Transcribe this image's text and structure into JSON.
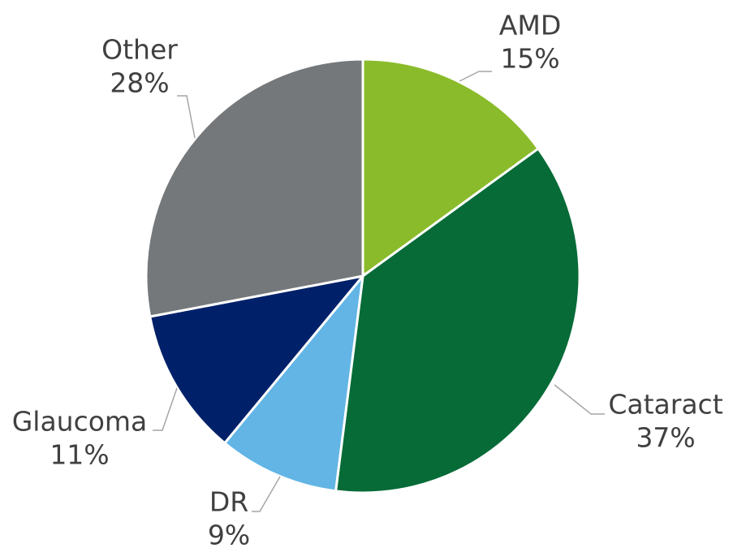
{
  "chart_data": {
    "type": "pie",
    "categories": [
      "AMD",
      "Cataract",
      "DR",
      "Glaucoma",
      "Other"
    ],
    "values": [
      15,
      37,
      9,
      11,
      28
    ],
    "value_labels": [
      "15%",
      "37%",
      "9%",
      "11%",
      "28%"
    ],
    "colors": [
      "#8abb2a",
      "#066b37",
      "#62b5e5",
      "#002169",
      "#75787b"
    ]
  }
}
